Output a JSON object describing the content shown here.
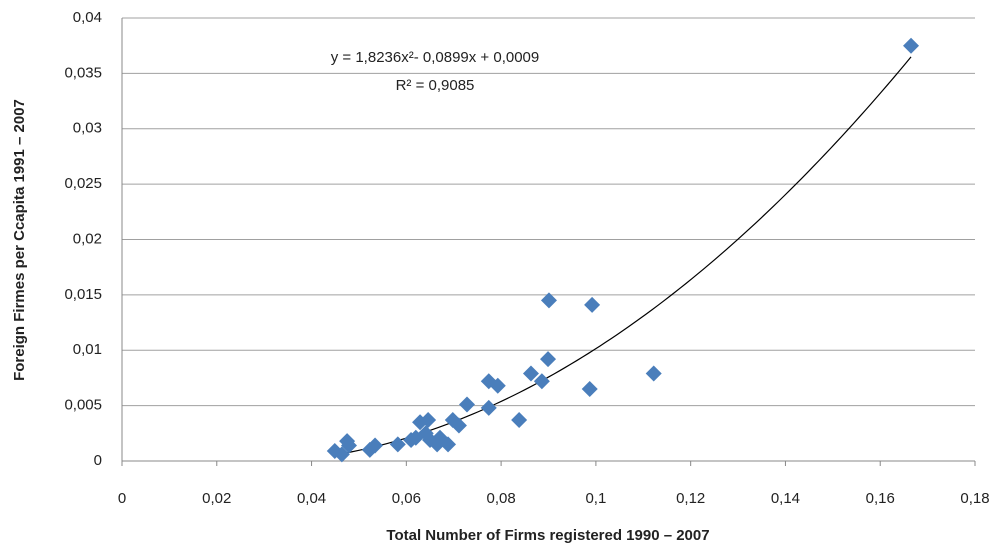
{
  "chart_data": {
    "type": "scatter",
    "x_label": "Total Number of Firms registered 1990 – 2007",
    "y_label": "Foreign Firmes per Ccapita 1991 – 2007",
    "x": [
      0.1665,
      0.0901,
      0.0992,
      0.1122,
      0.0987,
      0.0899,
      0.0886,
      0.0863,
      0.0793,
      0.0774,
      0.0774,
      0.0838,
      0.0728,
      0.0711,
      0.0698,
      0.0688,
      0.0671,
      0.0665,
      0.0646,
      0.0629,
      0.0641,
      0.065,
      0.062,
      0.061,
      0.0582,
      0.0534,
      0.0523,
      0.0479,
      0.0475,
      0.0449,
      0.0464
    ],
    "values": [
      0.0375,
      0.0145,
      0.0141,
      0.0079,
      0.0065,
      0.0092,
      0.0072,
      0.0079,
      0.0068,
      0.0072,
      0.0048,
      0.0037,
      0.0051,
      0.0032,
      0.0037,
      0.0015,
      0.0021,
      0.0015,
      0.0037,
      0.0035,
      0.0025,
      0.0019,
      0.0021,
      0.0019,
      0.0015,
      0.0014,
      0.001,
      0.0014,
      0.0018,
      0.0009,
      0.0006
    ],
    "color": "#4a7ebb",
    "trendline": {
      "equation": "y = 1,8236x²- 0,0899x + 0,0009",
      "r2": "R² = 0,9085",
      "coefficients": [
        1.8236,
        -0.0899,
        0.0009
      ],
      "color": "#000000"
    },
    "xlim": [
      0,
      0.18
    ],
    "xticks": [
      0,
      {
        "value": 0.02,
        "label": "0,02"
      },
      {
        "value": 0.04,
        "label": "0,04"
      },
      {
        "value": 0.06,
        "label": "0,06"
      },
      {
        "value": 0.08,
        "label": "0,08"
      },
      {
        "value": 0.1,
        "label": "0,1"
      },
      {
        "value": 0.12,
        "label": "0,12"
      },
      {
        "value": 0.14,
        "label": "0,14"
      },
      {
        "value": 0.16,
        "label": "0,16"
      },
      {
        "value": 0.18,
        "label": "0,18"
      }
    ],
    "ylim": [
      0,
      0.04
    ],
    "yticks": [
      0,
      {
        "value": 0.005,
        "label": "0,005"
      },
      {
        "value": 0.01,
        "label": "0,01"
      },
      {
        "value": 0.015,
        "label": "0,015"
      },
      {
        "value": 0.02,
        "label": "0,02"
      },
      {
        "value": 0.025,
        "label": "0,025"
      },
      {
        "value": 0.03,
        "label": "0,03"
      },
      {
        "value": 0.035,
        "label": "0,035"
      },
      {
        "value": 0.04,
        "label": "0,04"
      }
    ],
    "grid": true
  }
}
